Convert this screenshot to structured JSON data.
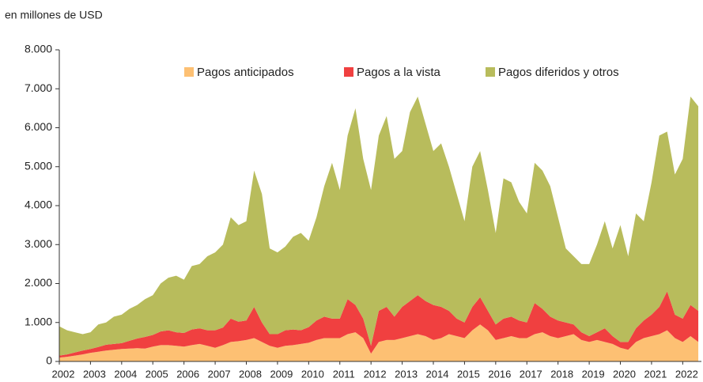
{
  "chart_data": {
    "type": "stacked_area",
    "ylabel": "en millones de USD",
    "x": [
      2002,
      2002.25,
      2002.5,
      2002.75,
      2003,
      2003.25,
      2003.5,
      2003.75,
      2004,
      2004.25,
      2004.5,
      2004.75,
      2005,
      2005.25,
      2005.5,
      2005.75,
      2006,
      2006.25,
      2006.5,
      2006.75,
      2007,
      2007.25,
      2007.5,
      2007.75,
      2008,
      2008.25,
      2008.5,
      2008.75,
      2009,
      2009.25,
      2009.5,
      2009.75,
      2010,
      2010.25,
      2010.5,
      2010.75,
      2011,
      2011.25,
      2011.5,
      2011.75,
      2012,
      2012.25,
      2012.5,
      2012.75,
      2013,
      2013.25,
      2013.5,
      2013.75,
      2014,
      2014.25,
      2014.5,
      2014.75,
      2015,
      2015.25,
      2015.5,
      2015.75,
      2016,
      2016.25,
      2016.5,
      2016.75,
      2017,
      2017.25,
      2017.5,
      2017.75,
      2018,
      2018.25,
      2018.5,
      2018.75,
      2019,
      2019.25,
      2019.5,
      2019.75,
      2020,
      2020.25,
      2020.5,
      2020.75,
      2021,
      2021.25,
      2021.5,
      2021.75,
      2022,
      2022.25,
      2022.5
    ],
    "series": [
      {
        "name": "Pagos anticipados",
        "color": "#fdc073",
        "values": [
          100,
          120,
          150,
          180,
          220,
          250,
          280,
          300,
          320,
          330,
          340,
          330,
          380,
          420,
          420,
          400,
          380,
          420,
          450,
          400,
          350,
          420,
          500,
          520,
          550,
          600,
          500,
          400,
          350,
          400,
          420,
          450,
          480,
          550,
          600,
          600,
          600,
          700,
          750,
          600,
          200,
          500,
          550,
          550,
          600,
          650,
          700,
          650,
          550,
          600,
          700,
          650,
          600,
          800,
          950,
          800,
          550,
          600,
          650,
          600,
          600,
          700,
          750,
          650,
          600,
          650,
          700,
          550,
          500,
          550,
          500,
          450,
          350,
          300,
          500,
          600,
          650,
          700,
          800,
          600,
          500,
          650,
          500
        ]
      },
      {
        "name": "Pagos a la vista",
        "color": "#f04040",
        "values": [
          50,
          60,
          80,
          100,
          100,
          120,
          150,
          150,
          150,
          200,
          250,
          300,
          300,
          350,
          380,
          350,
          350,
          400,
          400,
          400,
          450,
          450,
          600,
          500,
          500,
          800,
          500,
          300,
          350,
          400,
          400,
          350,
          400,
          500,
          550,
          500,
          500,
          900,
          700,
          500,
          200,
          800,
          850,
          600,
          800,
          900,
          1000,
          900,
          900,
          800,
          600,
          450,
          400,
          600,
          700,
          500,
          400,
          500,
          500,
          450,
          400,
          800,
          600,
          500,
          450,
          350,
          250,
          200,
          150,
          200,
          350,
          200,
          150,
          200,
          350,
          450,
          550,
          700,
          1000,
          600,
          600,
          800,
          800
        ]
      },
      {
        "name": "Pagos diferidos y otros",
        "color": "#b8bc5c",
        "values": [
          750,
          620,
          520,
          420,
          430,
          580,
          570,
          700,
          730,
          820,
          860,
          970,
          1020,
          1230,
          1350,
          1450,
          1370,
          1630,
          1650,
          1900,
          2000,
          2130,
          2600,
          2480,
          2550,
          3500,
          3300,
          2200,
          2100,
          2150,
          2380,
          2500,
          2220,
          2650,
          3350,
          4000,
          3300,
          4200,
          5050,
          4100,
          4000,
          4500,
          4900,
          4050,
          4000,
          4850,
          5100,
          4550,
          3950,
          4200,
          3700,
          3200,
          2600,
          3600,
          3750,
          3100,
          2350,
          3600,
          3450,
          3050,
          2800,
          3600,
          3550,
          3350,
          2650,
          1900,
          1750,
          1750,
          1850,
          2250,
          2750,
          2250,
          3000,
          2200,
          2950,
          2550,
          3400,
          4400,
          4100,
          3600,
          4100,
          5350,
          5250
        ]
      }
    ],
    "xlim": [
      2002,
      2022.6
    ],
    "xticks": [
      2002,
      2003,
      2004,
      2005,
      2006,
      2007,
      2008,
      2009,
      2010,
      2011,
      2012,
      2013,
      2014,
      2015,
      2016,
      2017,
      2018,
      2019,
      2020,
      2021,
      2022
    ],
    "ylim": [
      0,
      8000
    ],
    "yticks": [
      0,
      {
        "value": 1000,
        "label": "1.000"
      },
      {
        "value": 2000,
        "label": "2.000"
      },
      {
        "value": 3000,
        "label": "3.000"
      },
      {
        "value": 4000,
        "label": "4.000"
      },
      {
        "value": 5000,
        "label": "5.000"
      },
      {
        "value": 6000,
        "label": "6.000"
      },
      {
        "value": 7000,
        "label": "7.000"
      },
      {
        "value": 8000,
        "label": "8.000"
      }
    ],
    "legend": "top"
  }
}
